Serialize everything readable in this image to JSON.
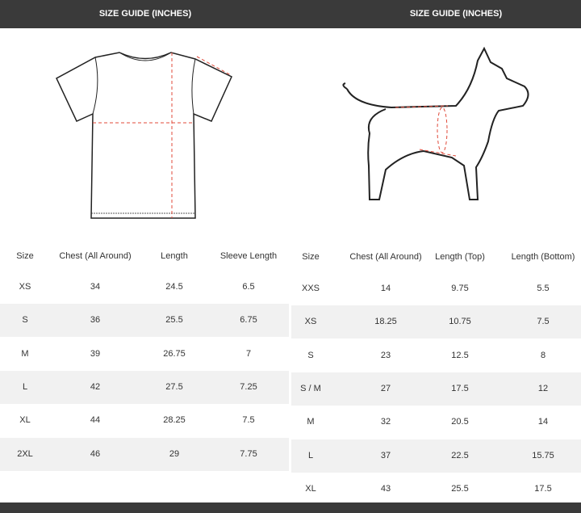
{
  "left": {
    "title": "SIZE GUIDE (INCHES)",
    "table": {
      "header": [
        "Size",
        "Chest (All Around)",
        "Length",
        "Sleeve Length"
      ],
      "rows": [
        [
          "XS",
          "34",
          "24.5",
          "6.5"
        ],
        [
          "S",
          "36",
          "25.5",
          "6.75"
        ],
        [
          "M",
          "39",
          "26.75",
          "7"
        ],
        [
          "L",
          "42",
          "27.5",
          "7.25"
        ],
        [
          "XL",
          "44",
          "28.25",
          "7.5"
        ],
        [
          "2XL",
          "46",
          "29",
          "7.75"
        ]
      ]
    }
  },
  "right": {
    "title": "SIZE GUIDE (INCHES)",
    "table": {
      "header": [
        "Size",
        "Chest (All Around)",
        "Length (Top)",
        "Length (Bottom)"
      ],
      "rows": [
        [
          "XXS",
          "14",
          "9.75",
          "5.5"
        ],
        [
          "XS",
          "18.25",
          "10.75",
          "7.5"
        ],
        [
          "S",
          "23",
          "12.5",
          "8"
        ],
        [
          "S / M",
          "27",
          "17.5",
          "12"
        ],
        [
          "M",
          "32",
          "20.5",
          "14"
        ],
        [
          "L",
          "37",
          "22.5",
          "15.75"
        ],
        [
          "XL",
          "43",
          "25.5",
          "17.5"
        ]
      ]
    }
  }
}
